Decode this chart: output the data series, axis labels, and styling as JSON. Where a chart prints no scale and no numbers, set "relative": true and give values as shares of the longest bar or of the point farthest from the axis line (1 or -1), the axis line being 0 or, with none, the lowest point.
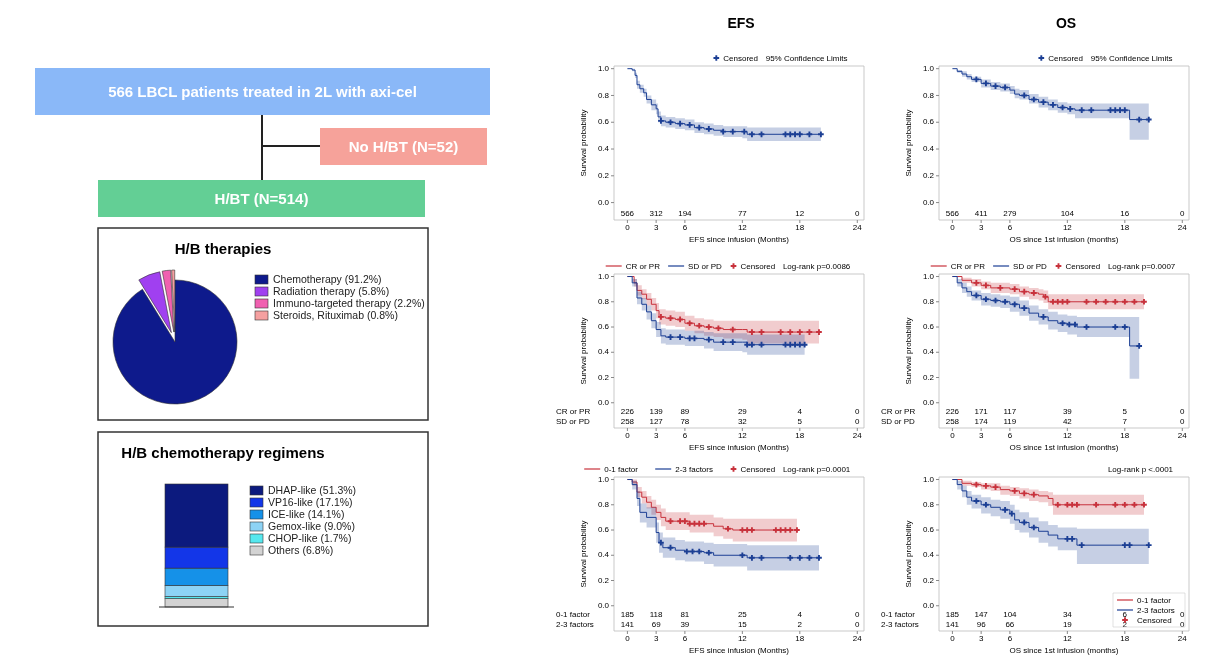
{
  "chart_data": [
    {
      "type": "other",
      "annotations": [
        "566 LBCL patients treated in 2L with axi-cel",
        "No H/BT (N=52)",
        "H/BT (N=514)"
      ]
    },
    {
      "type": "pie",
      "title": "H/B therapies",
      "categories": [
        "Chemotherapy (91.2%)",
        "Radiation therapy (5.8%)",
        "Immuno-targeted therapy (2.2%)",
        "Steroids, Rituximab (0.8%)"
      ],
      "values": [
        91.2,
        5.8,
        2.2,
        0.8
      ],
      "colors": [
        "#0e1a8c",
        "#a040f0",
        "#f060b0",
        "#f5a0a0"
      ],
      "legend": "right"
    },
    {
      "type": "bar",
      "title": "H/B chemotherapy regimens",
      "categories": [
        null
      ],
      "stacked": true,
      "relative": true,
      "legend": "right",
      "series": [
        {
          "name": "Others (6.8%)",
          "color": "#d3d3d3",
          "values": [
            0.068
          ]
        },
        {
          "name": "CHOP-like (1.7%)",
          "color": "#56e8ee",
          "values": [
            0.017
          ]
        },
        {
          "name": "Gemox-like (9.0%)",
          "color": "#8dd3f5",
          "values": [
            0.09
          ]
        },
        {
          "name": "ICE-like (14.1%)",
          "color": "#1591e8",
          "values": [
            0.141
          ]
        },
        {
          "name": "VP16-like (17.1%)",
          "color": "#1336e8",
          "values": [
            0.171
          ]
        },
        {
          "name": "DHAP-like (51.3%)",
          "color": "#0c1a7e",
          "values": [
            0.513
          ]
        }
      ]
    },
    {
      "type": "step",
      "title": "EFS",
      "xlabel": "EFS since infusion (Months)",
      "ylabel": "Survival probability",
      "xlim": [
        -1.4,
        24.7
      ],
      "ylim": [
        -0.13,
        1.02
      ],
      "xticks": [
        0,
        3,
        6,
        12,
        18,
        24
      ],
      "yticks": [
        {
          "value": 0,
          "label": "0.0"
        },
        {
          "value": 0.2,
          "label": "0.2"
        },
        {
          "value": 0.4,
          "label": "0.4"
        },
        {
          "value": 0.6,
          "label": "0.6"
        },
        {
          "value": 0.8,
          "label": "0.8"
        },
        {
          "value": 1,
          "label": "1.0"
        }
      ],
      "legend": "top right",
      "annotations": [
        "566",
        "312",
        "194",
        "77",
        "12",
        "0",
        "95% Confidence Limits"
      ],
      "series": [
        {
          "color": "#1c3f94",
          "x": [
            0,
            0.5,
            0.8,
            1,
            1.3,
            1.7,
            2,
            2.5,
            3,
            3.2,
            3.5,
            4,
            5,
            6,
            7,
            8,
            9,
            10,
            12,
            12.5,
            20.2
          ],
          "values": [
            1,
            0.99,
            0.95,
            0.88,
            0.85,
            0.82,
            0.77,
            0.73,
            0.7,
            0.64,
            0.61,
            0.6,
            0.59,
            0.58,
            0.56,
            0.55,
            0.54,
            0.53,
            0.53,
            0.51,
            0.51
          ],
          "lower": [
            1,
            0.98,
            0.93,
            0.85,
            0.82,
            0.79,
            0.74,
            0.69,
            0.66,
            0.6,
            0.57,
            0.56,
            0.55,
            0.54,
            0.52,
            0.51,
            0.5,
            0.49,
            0.48,
            0.46,
            0.46
          ],
          "upper": [
            1,
            1,
            0.97,
            0.91,
            0.88,
            0.85,
            0.8,
            0.77,
            0.74,
            0.68,
            0.65,
            0.64,
            0.63,
            0.62,
            0.6,
            0.59,
            0.58,
            0.57,
            0.57,
            0.56,
            0.56
          ]
        },
        {
          "type": "scatter",
          "marker": "cross",
          "name": "Censored",
          "color": "#1c3f94",
          "x": [
            3.5,
            4.5,
            5.5,
            6.5,
            7.5,
            8.5,
            10,
            11,
            12.2,
            13,
            14,
            16.5,
            17,
            17.5,
            18,
            19,
            20.2
          ],
          "values": [
            0.61,
            0.6,
            0.59,
            0.58,
            0.56,
            0.55,
            0.53,
            0.53,
            0.53,
            0.51,
            0.51,
            0.51,
            0.51,
            0.51,
            0.51,
            0.51,
            0.51
          ]
        }
      ]
    },
    {
      "type": "step",
      "title": "OS",
      "xlabel": "OS since 1st infusion (months)",
      "ylabel": "Survival probability",
      "xlim": [
        -1.4,
        24.7
      ],
      "ylim": [
        -0.13,
        1.02
      ],
      "xticks": [
        0,
        3,
        6,
        12,
        18,
        24
      ],
      "yticks": [
        {
          "value": 0,
          "label": "0.0"
        },
        {
          "value": 0.2,
          "label": "0.2"
        },
        {
          "value": 0.4,
          "label": "0.4"
        },
        {
          "value": 0.6,
          "label": "0.6"
        },
        {
          "value": 0.8,
          "label": "0.8"
        },
        {
          "value": 1,
          "label": "1.0"
        }
      ],
      "legend": "top right",
      "annotations": [
        "566",
        "411",
        "279",
        "104",
        "16",
        "0",
        "95% Confidence Limits"
      ],
      "series": [
        {
          "color": "#1c3f94",
          "x": [
            0,
            0.5,
            1,
            1.5,
            2,
            3,
            4,
            5,
            6,
            6.5,
            7,
            8,
            9,
            10,
            11,
            12,
            12.8,
            18.5,
            20.5
          ],
          "values": [
            1,
            0.98,
            0.96,
            0.94,
            0.92,
            0.89,
            0.87,
            0.86,
            0.84,
            0.81,
            0.8,
            0.77,
            0.75,
            0.73,
            0.71,
            0.7,
            0.69,
            0.62,
            0.62
          ],
          "lower": [
            1,
            0.97,
            0.94,
            0.92,
            0.9,
            0.86,
            0.84,
            0.83,
            0.81,
            0.78,
            0.77,
            0.74,
            0.71,
            0.69,
            0.67,
            0.66,
            0.63,
            0.47,
            0.47
          ],
          "upper": [
            1,
            0.99,
            0.98,
            0.96,
            0.94,
            0.92,
            0.9,
            0.89,
            0.87,
            0.85,
            0.84,
            0.81,
            0.79,
            0.77,
            0.75,
            0.74,
            0.74,
            0.74,
            0.74
          ]
        },
        {
          "type": "scatter",
          "marker": "cross",
          "name": "Censored",
          "color": "#1c3f94",
          "x": [
            2.5,
            3.5,
            4.5,
            5.5,
            7.5,
            8.5,
            9.5,
            10.5,
            11.5,
            12.3,
            13.5,
            14.5,
            16.5,
            17,
            17.5,
            18,
            19.5,
            20.5
          ],
          "values": [
            0.92,
            0.89,
            0.87,
            0.86,
            0.8,
            0.77,
            0.75,
            0.73,
            0.71,
            0.7,
            0.69,
            0.69,
            0.69,
            0.69,
            0.69,
            0.69,
            0.62,
            0.62
          ]
        }
      ]
    },
    {
      "type": "step",
      "xlabel": "EFS since infusion (Months)",
      "ylabel": "Survival probability",
      "xlim": [
        -1.4,
        24.7
      ],
      "ylim": [
        -0.2,
        1.02
      ],
      "xticks": [
        0,
        3,
        6,
        12,
        18,
        24
      ],
      "yticks": [
        {
          "value": 0,
          "label": "0.0"
        },
        {
          "value": 0.2,
          "label": "0.2"
        },
        {
          "value": 0.4,
          "label": "0.4"
        },
        {
          "value": 0.6,
          "label": "0.6"
        },
        {
          "value": 0.8,
          "label": "0.8"
        },
        {
          "value": 1,
          "label": "1.0"
        }
      ],
      "legend": "top",
      "annotations": [
        "Log-rank p=0.0086",
        "CR or PR",
        "226",
        "139",
        "89",
        "29",
        "4",
        "0",
        "SD or PD",
        "258",
        "127",
        "78",
        "32",
        "5",
        "0"
      ],
      "series": [
        {
          "name": "CR or PR",
          "color": "#c8323c",
          "x": [
            0,
            0.7,
            1,
            1.5,
            2,
            2.5,
            3,
            3.3,
            4,
            5,
            6,
            7,
            8,
            9,
            10,
            12,
            12.5,
            20
          ],
          "values": [
            1,
            0.95,
            0.89,
            0.86,
            0.82,
            0.78,
            0.73,
            0.68,
            0.67,
            0.66,
            0.63,
            0.61,
            0.6,
            0.59,
            0.58,
            0.58,
            0.56,
            0.56
          ],
          "lower": [
            1,
            0.92,
            0.85,
            0.82,
            0.77,
            0.73,
            0.67,
            0.62,
            0.61,
            0.6,
            0.57,
            0.55,
            0.53,
            0.52,
            0.51,
            0.5,
            0.47,
            0.46
          ],
          "upper": [
            1,
            0.98,
            0.93,
            0.9,
            0.87,
            0.83,
            0.79,
            0.74,
            0.73,
            0.72,
            0.69,
            0.67,
            0.66,
            0.65,
            0.65,
            0.65,
            0.65,
            0.65
          ]
        },
        {
          "name": "SD or PD",
          "color": "#1c3f94",
          "x": [
            0,
            0.5,
            1,
            1.5,
            2,
            2.5,
            3,
            3.5,
            4,
            6,
            8,
            9,
            12,
            12.5,
            18.5
          ],
          "values": [
            1,
            0.95,
            0.83,
            0.78,
            0.72,
            0.65,
            0.58,
            0.53,
            0.52,
            0.51,
            0.5,
            0.48,
            0.48,
            0.46,
            0.46
          ],
          "lower": [
            1,
            0.92,
            0.78,
            0.73,
            0.66,
            0.59,
            0.52,
            0.47,
            0.46,
            0.45,
            0.43,
            0.41,
            0.4,
            0.38,
            0.38
          ],
          "upper": [
            1,
            0.98,
            0.88,
            0.83,
            0.77,
            0.71,
            0.64,
            0.59,
            0.58,
            0.57,
            0.56,
            0.55,
            0.55,
            0.54,
            0.54
          ]
        },
        {
          "type": "scatter",
          "marker": "cross",
          "name": "Censored",
          "color": "#c8323c",
          "x": [
            3.5,
            4.5,
            5.5,
            6.5,
            7.5,
            8.5,
            9.5,
            11,
            13,
            14,
            16,
            17,
            18,
            19,
            20
          ],
          "values": [
            0.68,
            0.67,
            0.66,
            0.63,
            0.61,
            0.6,
            0.59,
            0.58,
            0.56,
            0.56,
            0.56,
            0.56,
            0.56,
            0.56,
            0.56
          ]
        },
        {
          "type": "scatter",
          "marker": "cross",
          "color": "#1c3f94",
          "x": [
            4.5,
            5.5,
            6.5,
            7,
            8.5,
            10,
            11,
            12.5,
            13,
            14,
            16.5,
            17,
            17.5,
            18,
            18.5
          ],
          "values": [
            0.52,
            0.52,
            0.51,
            0.51,
            0.5,
            0.48,
            0.48,
            0.46,
            0.46,
            0.46,
            0.46,
            0.46,
            0.46,
            0.46,
            0.46
          ]
        }
      ]
    },
    {
      "type": "step",
      "xlabel": "OS since 1st infusion (months)",
      "ylabel": "Survival probability",
      "xlim": [
        -1.4,
        24.7
      ],
      "ylim": [
        -0.2,
        1.02
      ],
      "xticks": [
        0,
        3,
        6,
        12,
        18,
        24
      ],
      "yticks": [
        {
          "value": 0,
          "label": "0.0"
        },
        {
          "value": 0.2,
          "label": "0.2"
        },
        {
          "value": 0.4,
          "label": "0.4"
        },
        {
          "value": 0.6,
          "label": "0.6"
        },
        {
          "value": 0.8,
          "label": "0.8"
        },
        {
          "value": 1,
          "label": "1.0"
        }
      ],
      "legend": "top",
      "annotations": [
        "Log-rank p=0.0007",
        "CR or PR",
        "226",
        "171",
        "117",
        "39",
        "5",
        "0",
        "SD or PD",
        "258",
        "174",
        "119",
        "42",
        "7",
        "0"
      ],
      "series": [
        {
          "name": "CR or PR",
          "color": "#c8323c",
          "x": [
            0,
            1,
            2,
            3,
            4,
            6,
            7,
            8,
            9,
            9.5,
            10,
            20
          ],
          "values": [
            1,
            0.97,
            0.95,
            0.93,
            0.91,
            0.9,
            0.88,
            0.87,
            0.86,
            0.84,
            0.8,
            0.8
          ],
          "lower": [
            1,
            0.95,
            0.92,
            0.9,
            0.87,
            0.86,
            0.84,
            0.82,
            0.81,
            0.79,
            0.74,
            0.7
          ],
          "upper": [
            1,
            0.99,
            0.98,
            0.96,
            0.95,
            0.94,
            0.92,
            0.91,
            0.9,
            0.89,
            0.86,
            0.86
          ]
        },
        {
          "name": "SD or PD",
          "color": "#1c3f94",
          "x": [
            0,
            0.5,
            1,
            1.5,
            2,
            3,
            4,
            5,
            6,
            7,
            8,
            9,
            10,
            11,
            12,
            13,
            18.5,
            19.5
          ],
          "values": [
            1,
            0.95,
            0.91,
            0.88,
            0.85,
            0.82,
            0.81,
            0.8,
            0.78,
            0.75,
            0.71,
            0.68,
            0.65,
            0.63,
            0.62,
            0.6,
            0.45,
            0.45
          ],
          "lower": [
            1,
            0.92,
            0.87,
            0.84,
            0.81,
            0.77,
            0.76,
            0.75,
            0.72,
            0.69,
            0.65,
            0.62,
            0.58,
            0.56,
            0.54,
            0.52,
            0.19,
            0.19
          ],
          "upper": [
            1,
            0.98,
            0.95,
            0.92,
            0.89,
            0.87,
            0.86,
            0.85,
            0.84,
            0.81,
            0.77,
            0.74,
            0.72,
            0.7,
            0.69,
            0.68,
            0.68,
            0.68
          ]
        },
        {
          "type": "scatter",
          "marker": "cross",
          "name": "Censored",
          "color": "#c8323c",
          "x": [
            2.5,
            3.5,
            5,
            6.5,
            7.5,
            8.5,
            9.7,
            10.5,
            11,
            11.5,
            12,
            14,
            15,
            16,
            17,
            18,
            19,
            20
          ],
          "values": [
            0.95,
            0.93,
            0.91,
            0.9,
            0.88,
            0.87,
            0.84,
            0.8,
            0.8,
            0.8,
            0.8,
            0.8,
            0.8,
            0.8,
            0.8,
            0.8,
            0.8,
            0.8
          ]
        },
        {
          "type": "scatter",
          "marker": "cross",
          "color": "#1c3f94",
          "x": [
            2.5,
            3.5,
            4.5,
            5.5,
            6.5,
            7.5,
            9.5,
            11.5,
            12.2,
            12.8,
            14,
            17,
            18,
            19.5
          ],
          "values": [
            0.85,
            0.82,
            0.81,
            0.8,
            0.78,
            0.75,
            0.68,
            0.63,
            0.62,
            0.62,
            0.6,
            0.6,
            0.6,
            0.45
          ]
        }
      ]
    },
    {
      "type": "step",
      "xlabel": "EFS since infusion (Months)",
      "ylabel": "Survival probability",
      "xlim": [
        -1.4,
        24.7
      ],
      "ylim": [
        -0.2,
        1.02
      ],
      "xticks": [
        0,
        3,
        6,
        12,
        18,
        24
      ],
      "yticks": [
        {
          "value": 0,
          "label": "0.0"
        },
        {
          "value": 0.2,
          "label": "0.2"
        },
        {
          "value": 0.4,
          "label": "0.4"
        },
        {
          "value": 0.6,
          "label": "0.6"
        },
        {
          "value": 0.8,
          "label": "0.8"
        },
        {
          "value": 1,
          "label": "1.0"
        }
      ],
      "legend": "top",
      "annotations": [
        "Log-rank p=0.0001",
        "0-1 factor",
        "185",
        "118",
        "81",
        "25",
        "4",
        "0",
        "2-3 factors",
        "141",
        "69",
        "39",
        "15",
        "2",
        "0"
      ],
      "series": [
        {
          "name": "0-1 factor",
          "color": "#c8323c",
          "x": [
            0,
            0.5,
            1,
            1.5,
            2,
            2.5,
            3,
            3.5,
            4,
            6.5,
            9,
            10,
            11,
            17.7
          ],
          "values": [
            1,
            0.98,
            0.9,
            0.86,
            0.82,
            0.78,
            0.74,
            0.7,
            0.67,
            0.65,
            0.63,
            0.61,
            0.6,
            0.6
          ],
          "lower": [
            1,
            0.95,
            0.86,
            0.81,
            0.77,
            0.72,
            0.68,
            0.63,
            0.6,
            0.58,
            0.55,
            0.53,
            0.51,
            0.51
          ],
          "upper": [
            1,
            1,
            0.94,
            0.91,
            0.87,
            0.84,
            0.8,
            0.77,
            0.74,
            0.72,
            0.7,
            0.69,
            0.69,
            0.69
          ]
        },
        {
          "name": "2-3 factors",
          "color": "#1c3f94",
          "x": [
            0,
            0.5,
            1,
            1.3,
            2,
            3,
            3.3,
            3.7,
            5,
            6,
            8,
            9,
            12.5,
            20
          ],
          "values": [
            1,
            0.96,
            0.85,
            0.74,
            0.7,
            0.58,
            0.5,
            0.46,
            0.44,
            0.43,
            0.42,
            0.4,
            0.38,
            0.38
          ],
          "lower": [
            1,
            0.92,
            0.79,
            0.66,
            0.62,
            0.5,
            0.42,
            0.38,
            0.36,
            0.35,
            0.33,
            0.31,
            0.28,
            0.28
          ],
          "upper": [
            1,
            0.99,
            0.91,
            0.81,
            0.78,
            0.66,
            0.58,
            0.54,
            0.52,
            0.51,
            0.5,
            0.49,
            0.48,
            0.48
          ]
        },
        {
          "type": "scatter",
          "marker": "cross",
          "name": "Censored",
          "color": "#c8323c",
          "x": [
            4.5,
            5.5,
            6,
            6.5,
            7,
            7.5,
            8,
            10.5,
            12,
            12.5,
            13,
            15.5,
            16,
            16.5,
            17,
            17.7
          ],
          "values": [
            0.67,
            0.67,
            0.67,
            0.65,
            0.65,
            0.65,
            0.65,
            0.61,
            0.6,
            0.6,
            0.6,
            0.6,
            0.6,
            0.6,
            0.6,
            0.6
          ]
        },
        {
          "type": "scatter",
          "marker": "cross",
          "color": "#1c3f94",
          "x": [
            3.5,
            4.5,
            6.2,
            6.8,
            7.5,
            8.5,
            12,
            13,
            14,
            17,
            18,
            19,
            20
          ],
          "values": [
            0.5,
            0.46,
            0.43,
            0.43,
            0.43,
            0.42,
            0.4,
            0.38,
            0.38,
            0.38,
            0.38,
            0.38,
            0.38
          ]
        }
      ]
    },
    {
      "type": "step",
      "xlabel": "OS since 1st infusion (months)",
      "ylabel": "Survival probability",
      "xlim": [
        -1.4,
        24.7
      ],
      "ylim": [
        -0.2,
        1.02
      ],
      "xticks": [
        0,
        3,
        6,
        12,
        18,
        24
      ],
      "yticks": [
        {
          "value": 0,
          "label": "0.0"
        },
        {
          "value": 0.2,
          "label": "0.2"
        },
        {
          "value": 0.4,
          "label": "0.4"
        },
        {
          "value": 0.6,
          "label": "0.6"
        },
        {
          "value": 0.8,
          "label": "0.8"
        },
        {
          "value": 1,
          "label": "1.0"
        }
      ],
      "legend": "bottom right",
      "annotations": [
        "Log-rank p <.0001",
        "0-1 factor",
        "185",
        "147",
        "104",
        "34",
        "6",
        "0",
        "2-3 factors",
        "141",
        "96",
        "66",
        "19",
        "2",
        "0"
      ],
      "series": [
        {
          "name": "0-1 factor",
          "color": "#c8323c",
          "x": [
            0,
            1,
            2,
            3,
            4,
            5,
            6,
            7,
            8,
            9,
            10,
            10.5,
            20
          ],
          "values": [
            1,
            0.97,
            0.96,
            0.95,
            0.94,
            0.92,
            0.91,
            0.89,
            0.88,
            0.87,
            0.85,
            0.8,
            0.8
          ],
          "lower": [
            1,
            0.95,
            0.94,
            0.92,
            0.91,
            0.88,
            0.87,
            0.85,
            0.83,
            0.82,
            0.79,
            0.72,
            0.7
          ],
          "upper": [
            1,
            0.99,
            0.98,
            0.97,
            0.97,
            0.95,
            0.94,
            0.93,
            0.92,
            0.91,
            0.9,
            0.88,
            0.88
          ]
        },
        {
          "name": "2-3 factors",
          "color": "#1c3f94",
          "x": [
            0,
            0.5,
            1,
            1.5,
            2,
            3,
            4,
            5,
            6,
            6.5,
            7,
            8,
            9,
            10,
            11,
            13,
            20.5
          ],
          "values": [
            1,
            0.96,
            0.91,
            0.86,
            0.83,
            0.8,
            0.78,
            0.76,
            0.73,
            0.68,
            0.66,
            0.62,
            0.59,
            0.56,
            0.53,
            0.48,
            0.48
          ],
          "lower": [
            1,
            0.92,
            0.86,
            0.8,
            0.77,
            0.73,
            0.71,
            0.69,
            0.65,
            0.6,
            0.58,
            0.54,
            0.5,
            0.47,
            0.44,
            0.33,
            0.33
          ],
          "upper": [
            1,
            0.99,
            0.95,
            0.91,
            0.88,
            0.86,
            0.84,
            0.83,
            0.8,
            0.76,
            0.74,
            0.7,
            0.67,
            0.64,
            0.62,
            0.61,
            0.61
          ]
        },
        {
          "type": "scatter",
          "marker": "cross",
          "name": "Censored",
          "color": "#c8323c",
          "x": [
            2.5,
            3.5,
            4.5,
            6.5,
            7.5,
            8.5,
            11,
            12,
            12.5,
            13,
            15,
            17,
            18,
            19,
            20
          ],
          "values": [
            0.96,
            0.95,
            0.94,
            0.91,
            0.89,
            0.88,
            0.8,
            0.8,
            0.8,
            0.8,
            0.8,
            0.8,
            0.8,
            0.8,
            0.8
          ]
        },
        {
          "type": "scatter",
          "marker": "cross",
          "color": "#1c3f94",
          "x": [
            2.5,
            3.5,
            5.5,
            6.2,
            7.5,
            8.5,
            12,
            12.5,
            13.5,
            18,
            18.5,
            20.5
          ],
          "values": [
            0.83,
            0.8,
            0.76,
            0.73,
            0.66,
            0.62,
            0.53,
            0.53,
            0.48,
            0.48,
            0.48,
            0.48
          ]
        }
      ]
    }
  ]
}
